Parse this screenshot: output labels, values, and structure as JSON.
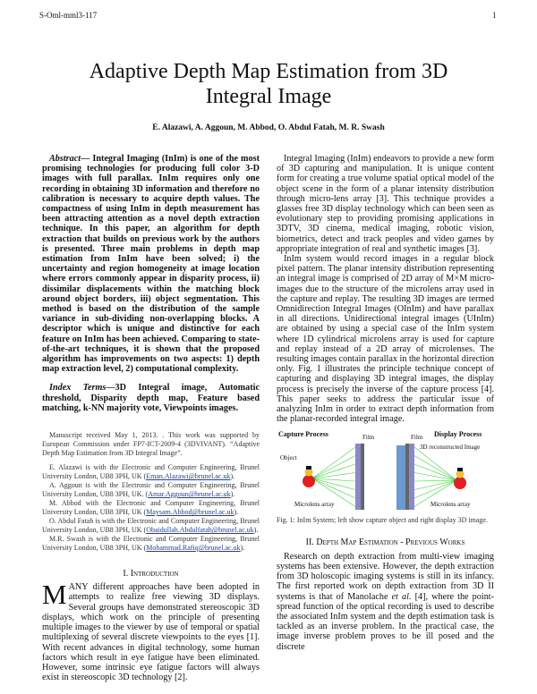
{
  "header": {
    "left": "S-Oml-mml3-117",
    "page_number": "1"
  },
  "title": {
    "line1": "Adaptive Depth Map Estimation from 3D",
    "line2": "Integral Image"
  },
  "authors": "E. Alazawi, A. Aggoun, M. Abbod, O. Abdul Fatah, M. R. Swash",
  "abstract": {
    "label": "Abstract",
    "text": "— Integral Imaging (InIm) is one of the most promising technologies for producing full color 3-D images with full parallax. InIm requires only one recording in obtaining 3D information and therefore no calibration is necessary to acquire depth values.  The compactness of using InIm in depth measurement has been attracting attention as a novel depth extraction technique. In this paper, an algorithm for depth extraction that builds on previous work by the authors is presented. Three main problems in depth map estimation from InIm have been solved; i) the uncertainty and region homogeneity at image location where errors commonly appear in disparity process, ii) dissimilar displacements within the matching block around object borders, iii) object segmentation. This method is based on the distribution of the sample variance in sub-dividing non-overlapping blocks. A descriptor which is unique and distinctive for each feature on InIm has been achieved.  Comparing to state-of-the-art techniques, it is shown that the proposed algorithm has improvements on two aspects: 1) depth map extraction level, 2) computational complexity."
  },
  "index_terms": {
    "label": "Index Terms",
    "text": "—3D Integral image, Automatic threshold, Disparity depth map, Feature based matching, k-NN majority vote, Viewpoints images."
  },
  "footnotes": {
    "manuscript": "Manuscript received May 1, 2013. . This work was supported by European Commission under FP7-ICT-2009-4 (3DVIVANT). “Adaptive Depth Map Estimation from 3D Integral Image”.",
    "affiliations": [
      {
        "text": "E. Alazawi is with the Electronic and Computer Engineering, Brunel University London, UB8 3PH, UK (",
        "email": "Eman.Alazawi@brunel.ac.uk",
        "end": ")."
      },
      {
        "text": "A. Aggoun is with the Electronic and Computer Engineering, Brunel University London, UB8 3PH, UK. (",
        "email": "Amar.Aggoun@brunel.ac.uk",
        "end": ")."
      },
      {
        "text": "M. Abbod with the Electronic and Computer Engineering, Brunel University London, UB8 3PH, UK (",
        "email": "Maysam.Abbod@brunel.ac.uk",
        "end": ")."
      },
      {
        "text": "O. Abdul Fatah is with the Electronic and Computer Engineering, Brunel University London, UB8 3PH, UK (",
        "email": "Obaidullah.Abdulfatah@brunel.ac.uk",
        "end": ")."
      },
      {
        "text": "M.R. Swash is with the Electronic and Computer Engineering, Brunel University London, UB8 3PH, UK (",
        "email": "Mohammad.Rafiq@brunel.ac.uk",
        "end": ")."
      }
    ]
  },
  "intro": {
    "number": "I.",
    "heading": "Introduction",
    "drop_cap": "M",
    "text": "ANY different approaches have been adopted in attempts to realize free viewing 3D displays. Several groups have demonstrated stereoscopic 3D displays, which work on the principle of presenting multiple images to the viewer by use of temporal or spatial multiplexing of several discrete viewpoints to the eyes [1]. With recent advances in digital technology, some human factors which result in eye fatigue have been eliminated.  However, some intrinsic eye fatigue factors will always exist in stereoscopic 3D technology [2]."
  },
  "right": {
    "p1": "Integral Imaging (InIm) endeavors to provide a new form of 3D capturing and manipulation. It is unique content form for creating a true volume spatial optical model of the object scene in the form of a planar intensity distribution through micro-lens array [3]. This technique  provides a glasses free 3D display  technology which can been seen as evolutionary step to providing promising applications in 3DTV, 3D cinema, medical imaging, robotic vision, biometrics, detect and track peoples and video games by appropriate integration of real and synthetic images [3].",
    "p2": "InIm system would record images in a regular block pixel pattern. The planar intensity distribution representing an integral image is comprised of 2D array of M×M micro-images due to the structure of the microlens array used in the capture and replay. The resulting 3D images are termed Omnidirection Integral Images (OInIm) and have parallax in all directions. Unidirectional integral images (UInIm) are obtained by using a special case of the InIm system where 1D cylindrical microlens array is used for capture and replay instead of a 2D array of microlenses.  The resulting images contain parallax in the horizontal direction only.  Fig. 1 illustrates the principle technique concept of capturing and displaying 3D integral images, the display process is precisely the inverse of the capture process [4].   This paper seeks to address the particular issue of analyzing InIm in order to extract depth information from the planar-recorded integral image.",
    "figure": {
      "capture_label": "Capture Process",
      "display_label": "Display Process",
      "film_label": "Film",
      "object_label": "Object",
      "microlens_label": "Microlens array",
      "recon_label": "3D reconstructed Image",
      "caption": "Fig. 1: InIm System; left show capture object and right display 3D image."
    },
    "section2": {
      "number": "II.",
      "heading": "Depth Map Estimation - Previous Works"
    },
    "p3_a": "Research on depth extraction from multi-view imaging systems has been extensive.  However, the depth extraction from 3D holoscopic imaging systems is still in its infancy. The first reported work on depth extraction from 3D II systems is that of Manolache ",
    "p3_em": "et al.",
    "p3_b": " [4], where the point-spread function of the optical recording is used to describe the associated InIm system and the depth estimation task is tackled as an inverse problem. In the practical case, the image inverse problem proves to be ill posed and the discrete"
  },
  "colors": {
    "link": "#1a3ea8",
    "ray": "#3ccf3c",
    "object": "#e02020",
    "lens": "#8a8ac8",
    "backlight": "#6a9ad0"
  }
}
